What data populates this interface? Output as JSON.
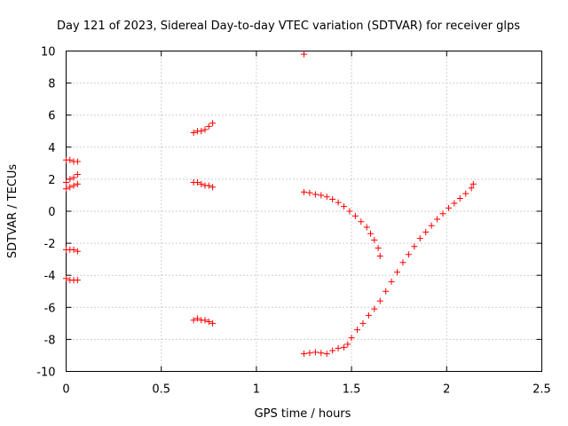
{
  "chart_data": {
    "type": "scatter",
    "title": "Day 121 of 2023, Sidereal Day-to-day VTEC variation (SDTVAR) for receiver glps",
    "xlabel": "GPS time / hours",
    "ylabel": "SDTVAR / TECUs",
    "xlim": [
      0,
      2.5
    ],
    "ylim": [
      -10,
      10
    ],
    "xticks": [
      0,
      0.5,
      1,
      1.5,
      2,
      2.5
    ],
    "xtick_labels": [
      "0",
      "0.5",
      "1",
      "1.5",
      "2",
      "2.5"
    ],
    "yticks": [
      -10,
      -8,
      -6,
      -4,
      -2,
      0,
      2,
      4,
      6,
      8,
      10
    ],
    "ytick_labels": [
      "-10",
      "-8",
      "-6",
      "-4",
      "-2",
      "0",
      "2",
      "4",
      "6",
      "8",
      "10"
    ],
    "grid": true,
    "marker": "+",
    "color": "#ff0000",
    "series": [
      {
        "points": [
          [
            0.0,
            3.2
          ],
          [
            0.02,
            3.2
          ],
          [
            0.04,
            3.1
          ],
          [
            0.06,
            3.1
          ],
          [
            0.0,
            1.8
          ],
          [
            0.02,
            2.0
          ],
          [
            0.04,
            2.1
          ],
          [
            0.06,
            2.3
          ],
          [
            0.0,
            1.4
          ],
          [
            0.02,
            1.5
          ],
          [
            0.04,
            1.6
          ],
          [
            0.06,
            1.7
          ],
          [
            0.0,
            -2.4
          ],
          [
            0.02,
            -2.4
          ],
          [
            0.04,
            -2.4
          ],
          [
            0.06,
            -2.5
          ],
          [
            0.0,
            -4.2
          ],
          [
            0.02,
            -4.3
          ],
          [
            0.04,
            -4.3
          ],
          [
            0.06,
            -4.3
          ],
          [
            0.67,
            4.9
          ],
          [
            0.69,
            5.0
          ],
          [
            0.71,
            5.0
          ],
          [
            0.73,
            5.1
          ],
          [
            0.75,
            5.3
          ],
          [
            0.77,
            5.5
          ],
          [
            0.67,
            1.8
          ],
          [
            0.69,
            1.8
          ],
          [
            0.71,
            1.7
          ],
          [
            0.73,
            1.6
          ],
          [
            0.75,
            1.6
          ],
          [
            0.77,
            1.5
          ],
          [
            0.67,
            -6.8
          ],
          [
            0.69,
            -6.7
          ],
          [
            0.71,
            -6.8
          ],
          [
            0.73,
            -6.8
          ],
          [
            0.75,
            -6.9
          ],
          [
            0.77,
            -7.0
          ],
          [
            1.25,
            9.8
          ],
          [
            1.25,
            1.2
          ],
          [
            1.28,
            1.15
          ],
          [
            1.31,
            1.05
          ],
          [
            1.34,
            1.0
          ],
          [
            1.37,
            0.9
          ],
          [
            1.4,
            0.75
          ],
          [
            1.43,
            0.55
          ],
          [
            1.46,
            0.3
          ],
          [
            1.49,
            0.0
          ],
          [
            1.52,
            -0.3
          ],
          [
            1.55,
            -0.65
          ],
          [
            1.58,
            -1.0
          ],
          [
            1.6,
            -1.4
          ],
          [
            1.62,
            -1.8
          ],
          [
            1.64,
            -2.3
          ],
          [
            1.65,
            -2.8
          ],
          [
            1.25,
            -8.9
          ],
          [
            1.28,
            -8.85
          ],
          [
            1.31,
            -8.8
          ],
          [
            1.34,
            -8.85
          ],
          [
            1.37,
            -8.9
          ],
          [
            1.4,
            -8.7
          ],
          [
            1.43,
            -8.55
          ],
          [
            1.46,
            -8.5
          ],
          [
            1.48,
            -8.3
          ],
          [
            1.5,
            -7.9
          ],
          [
            1.53,
            -7.4
          ],
          [
            1.56,
            -7.0
          ],
          [
            1.59,
            -6.5
          ],
          [
            1.62,
            -6.1
          ],
          [
            1.65,
            -5.6
          ],
          [
            1.68,
            -5.0
          ],
          [
            1.71,
            -4.4
          ],
          [
            1.74,
            -3.8
          ],
          [
            1.77,
            -3.2
          ],
          [
            1.8,
            -2.7
          ],
          [
            1.83,
            -2.2
          ],
          [
            1.86,
            -1.7
          ],
          [
            1.89,
            -1.3
          ],
          [
            1.92,
            -0.9
          ],
          [
            1.95,
            -0.5
          ],
          [
            1.98,
            -0.15
          ],
          [
            2.01,
            0.2
          ],
          [
            2.04,
            0.5
          ],
          [
            2.07,
            0.8
          ],
          [
            2.1,
            1.1
          ],
          [
            2.13,
            1.45
          ],
          [
            2.14,
            1.7
          ]
        ]
      }
    ]
  }
}
